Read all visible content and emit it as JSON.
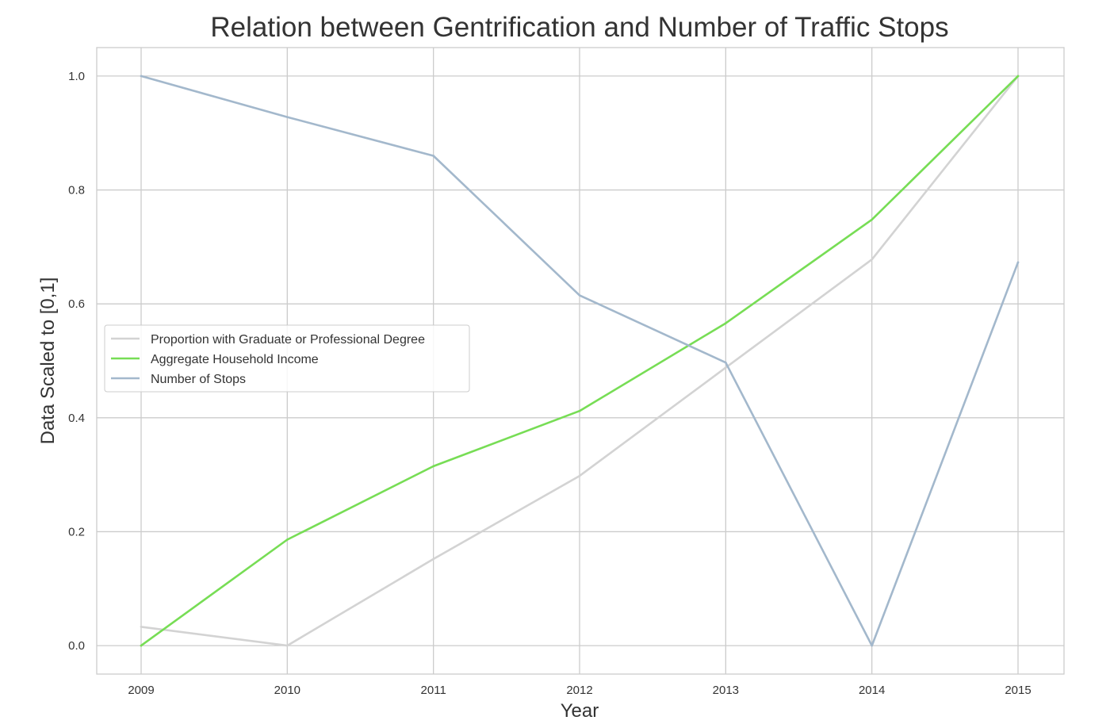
{
  "chart_data": {
    "type": "line",
    "title": "Relation between Gentrification and Number of Traffic Stops",
    "xlabel": "Year",
    "ylabel": "Data Scaled to [0,1]",
    "x": [
      "2009",
      "2010",
      "2011",
      "2012",
      "2013",
      "2014",
      "2015"
    ],
    "yticks": [
      "0.0",
      "0.2",
      "0.4",
      "0.6",
      "0.8",
      "1.0"
    ],
    "ylim": [
      -0.05,
      1.05
    ],
    "grid": true,
    "legend_position": "center-left",
    "series": [
      {
        "name": "Proportion with Graduate or Professional Degree",
        "color": "#d3d3d3",
        "values": [
          0.033,
          0.0,
          0.152,
          0.298,
          0.488,
          0.678,
          1.0
        ]
      },
      {
        "name": "Aggregate Household Income",
        "color": "#77dd55",
        "values": [
          0.0,
          0.186,
          0.315,
          0.412,
          0.566,
          0.748,
          1.0
        ]
      },
      {
        "name": "Number of Stops",
        "color": "#a3b8cc",
        "values": [
          1.0,
          0.928,
          0.86,
          0.615,
          0.497,
          0.0,
          0.673
        ]
      }
    ]
  }
}
